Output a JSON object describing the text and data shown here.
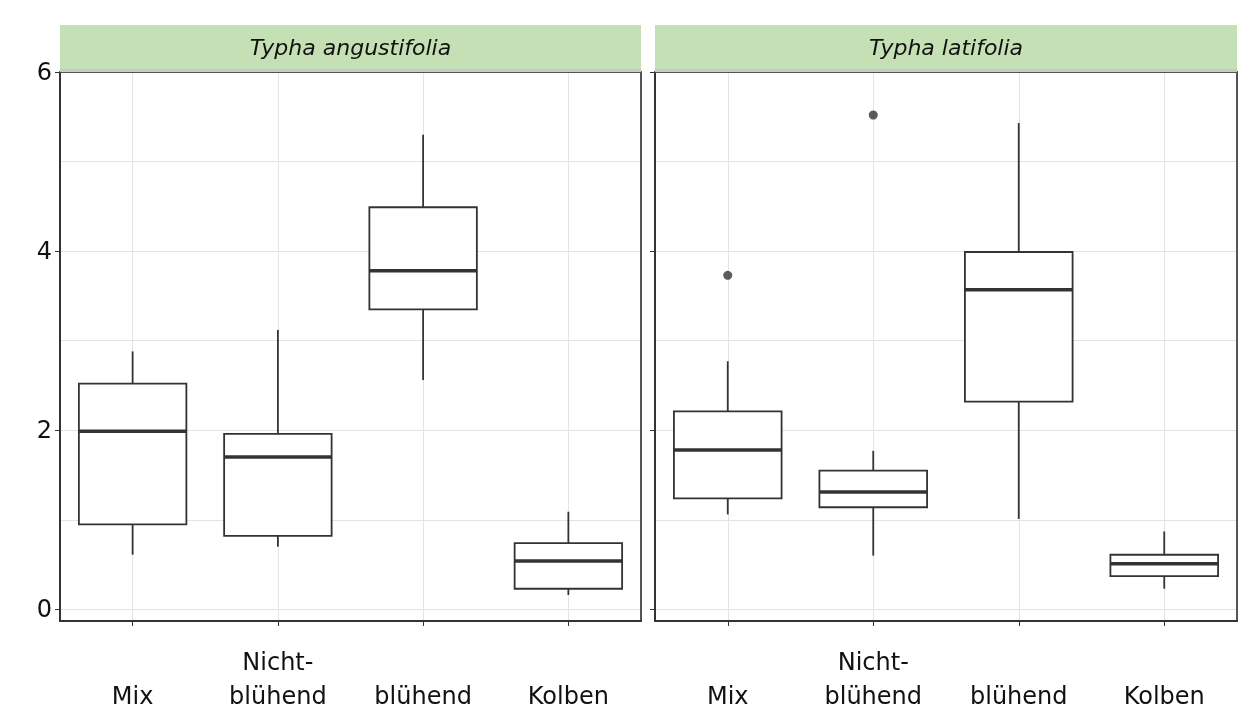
{
  "chart_data": [
    {
      "type": "box",
      "title": "Typha angustifolia",
      "categories": [
        "Mix",
        "Nicht-\nblühend",
        "blühend",
        "Kolben"
      ],
      "ylim": [
        -0.13,
        6
      ],
      "yticks": [
        0,
        2,
        4,
        6
      ],
      "grid": true,
      "color": "#333333",
      "boxes": [
        {
          "low": 0.61,
          "q1": 0.95,
          "median": 1.99,
          "q3": 2.52,
          "high": 2.88
        },
        {
          "low": 0.7,
          "q1": 0.82,
          "median": 1.7,
          "q3": 1.96,
          "high": 3.12
        },
        {
          "low": 2.56,
          "q1": 3.35,
          "median": 3.78,
          "q3": 4.49,
          "high": 5.3
        },
        {
          "low": 0.16,
          "q1": 0.23,
          "median": 0.54,
          "q3": 0.74,
          "high": 1.09
        }
      ]
    },
    {
      "type": "box",
      "title": "Typha latifolia",
      "categories": [
        "Mix",
        "Nicht-\nblühend",
        "blühend",
        "Kolben"
      ],
      "ylim": [
        -0.13,
        6
      ],
      "yticks": [
        0,
        2,
        4,
        6
      ],
      "grid": true,
      "tick_labels": "x",
      "color": "#333333",
      "boxes": [
        {
          "low": 1.06,
          "q1": 1.24,
          "median": 1.78,
          "q3": 2.21,
          "high": 2.77,
          "outliers": [
            3.73
          ]
        },
        {
          "low": 0.6,
          "q1": 1.14,
          "median": 1.31,
          "q3": 1.55,
          "high": 1.77,
          "outliers": [
            5.52
          ]
        },
        {
          "low": 1.01,
          "q1": 2.32,
          "median": 3.57,
          "q3": 3.99,
          "high": 5.43
        },
        {
          "low": 0.23,
          "q1": 0.37,
          "median": 0.51,
          "q3": 0.61,
          "high": 0.87
        }
      ]
    }
  ]
}
